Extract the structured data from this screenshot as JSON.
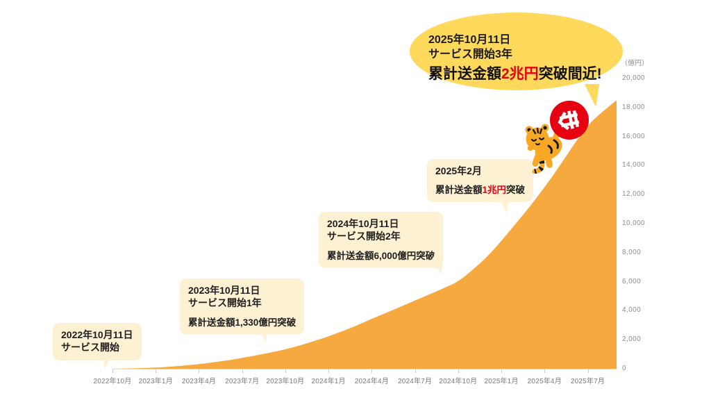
{
  "bubble": {
    "line1": "2025年10月11日",
    "line2": "サービス開始3年",
    "headline_prefix": "累計送金額",
    "headline_red": "2兆円",
    "headline_suffix": "突破間近!",
    "bg_color": "#FFD95C"
  },
  "callouts": [
    {
      "title1": "2022年10月11日",
      "title2": "サービス開始"
    },
    {
      "title1": "2023年10月11日",
      "title2": "サービス開始1年",
      "body_prefix": "累計送金額1,330億円突破",
      "body_red": "",
      "body_suffix": ""
    },
    {
      "title1": "2024年10月11日",
      "title2": "サービス開始2年",
      "body_prefix": "累計送金額6,000億円突破",
      "body_red": "",
      "body_suffix": ""
    },
    {
      "title1": "2025年2月",
      "body_prefix": "累計送金額",
      "body_red": "1兆円",
      "body_suffix": "突破"
    }
  ],
  "mascot": {
    "description": "tiger-mascot-pushing-red-coin-logo",
    "logo_color": "#E60012",
    "tiger_color": "#F9A825",
    "stripe_color": "#1a1a1a"
  },
  "chart_data": {
    "type": "area",
    "unit_label": "（億円）",
    "area_color": "#F5A93E",
    "ylim": [
      0,
      20000
    ],
    "x_interval": "monthly",
    "x_start": "2022-10",
    "x_end": "2025-09",
    "values": [
      0,
      15,
      40,
      80,
      140,
      220,
      320,
      440,
      580,
      740,
      930,
      1120,
      1330,
      1600,
      1900,
      2230,
      2600,
      3000,
      3440,
      3850,
      4270,
      4700,
      5120,
      5550,
      6000,
      6800,
      7700,
      8800,
      10000,
      11200,
      12500,
      13900,
      15400,
      16800,
      17700,
      18500
    ],
    "x_tick_labels": [
      "2022年10月",
      "2023年1月",
      "2023年4月",
      "2023年7月",
      "2023年10月",
      "2024年1月",
      "2024年4月",
      "2024年7月",
      "2024年10月",
      "2025年1月",
      "2025年4月",
      "2025年7月"
    ],
    "y_tick_labels": [
      "20,000",
      "18,000",
      "16,000",
      "14,000",
      "12,000",
      "10,000",
      "8,000",
      "6,000",
      "4,000",
      "2,000",
      "0"
    ],
    "grid": "off",
    "legend": "none",
    "annotations": [
      {
        "date": "2022年10月11日",
        "event": "サービス開始",
        "value_oku": 0
      },
      {
        "date": "2023年10月11日",
        "event": "サービス開始1年 累計送金額1,330億円突破",
        "value_oku": 1330
      },
      {
        "date": "2024年10月11日",
        "event": "サービス開始2年 累計送金額6,000億円突破",
        "value_oku": 6000
      },
      {
        "date": "2025年2月",
        "event": "累計送金額1兆円突破",
        "value_oku": 10000
      },
      {
        "date": "2025年10月11日",
        "event": "サービス開始3年 累計送金額2兆円突破間近!",
        "value_oku": 20000
      }
    ]
  }
}
